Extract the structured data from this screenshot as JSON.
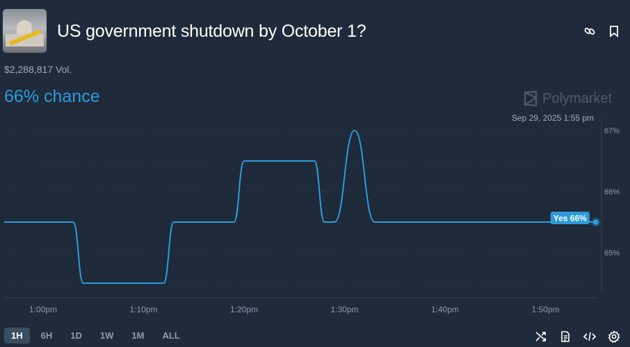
{
  "header": {
    "title": "US government shutdown by October 1?",
    "volume": "$2,288,817 Vol.",
    "chance": "66% chance",
    "brand": "Polymarket",
    "hover_date": "Sep 29, 2025 1:55 pm",
    "icons": [
      "link-icon",
      "bookmark-icon"
    ]
  },
  "ranges": [
    {
      "label": "1H",
      "active": true
    },
    {
      "label": "6H",
      "active": false
    },
    {
      "label": "1D",
      "active": false
    },
    {
      "label": "1W",
      "active": false
    },
    {
      "label": "1M",
      "active": false
    },
    {
      "label": "ALL",
      "active": false
    }
  ],
  "tools": [
    "shuffle-icon",
    "document-icon",
    "code-icon",
    "settings-icon"
  ],
  "colors": {
    "accent": "#2d9cdb",
    "background": "#1f2a3a"
  },
  "chart_data": {
    "type": "line",
    "series": [
      {
        "name": "Yes",
        "x": [
          "12:56",
          "1:03",
          "1:04",
          "1:12",
          "1:13",
          "1:19",
          "1:20",
          "1:27",
          "1:28",
          "1:29",
          "1:31",
          "1:33",
          "1:55"
        ],
        "y": [
          65.5,
          65.5,
          64.5,
          64.5,
          65.5,
          65.5,
          66.5,
          66.5,
          65.5,
          65.5,
          67,
          65.5,
          65.5
        ]
      }
    ],
    "end_label": "Yes 66%",
    "xticks": [
      "1:00pm",
      "1:10pm",
      "1:20pm",
      "1:30pm",
      "1:40pm",
      "1:50pm"
    ],
    "yticks": [
      "65%",
      "66%",
      "67%"
    ],
    "ylim": [
      64.5,
      67
    ],
    "grid": true,
    "yaxis_side": "right"
  }
}
